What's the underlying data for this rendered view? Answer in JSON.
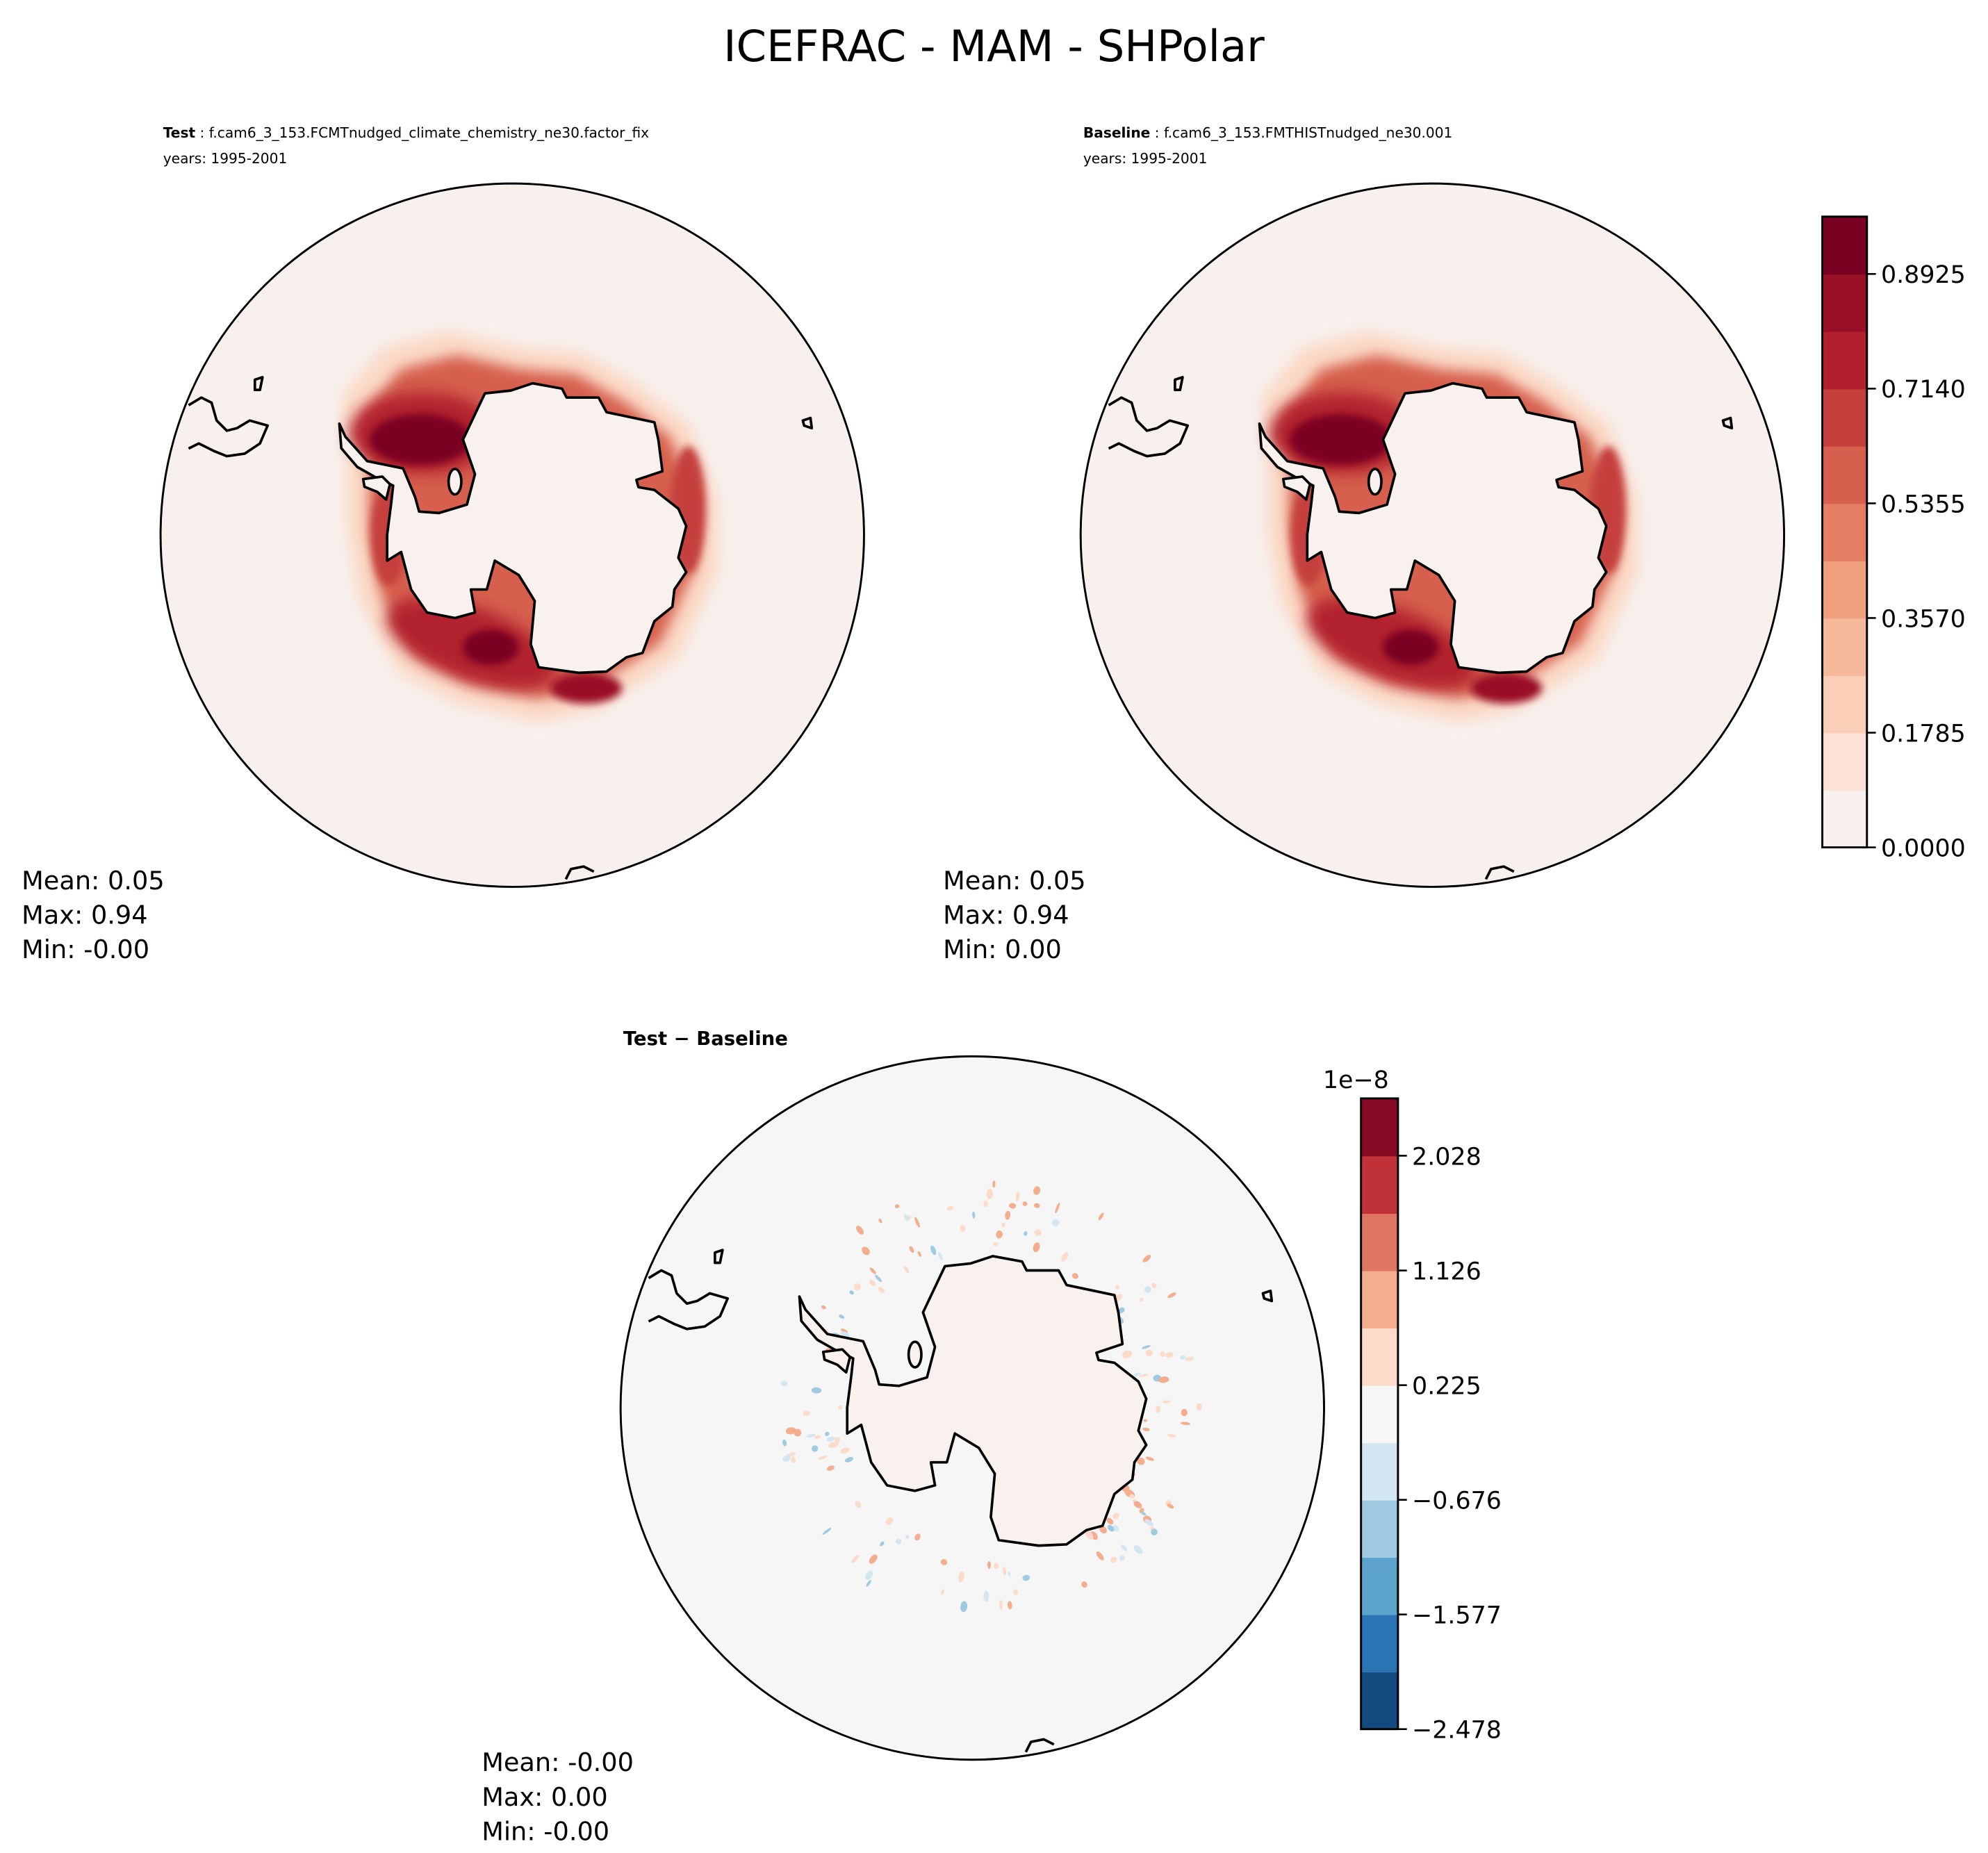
{
  "title": "ICEFRAC - MAM - SHPolar",
  "panels": [
    {
      "label": "Test",
      "case": " : f.cam6_3_153.FCMTnudged_climate_chemistry_ne30.factor_fix",
      "years": "years: 1995-2001",
      "stats": {
        "mean": "Mean:  0.05",
        "max": "Max:  0.94",
        "min": "Min: -0.00"
      }
    },
    {
      "label": "Baseline",
      "case": " : f.cam6_3_153.FMTHISTnudged_ne30.001",
      "years": "years: 1995-2001",
      "stats": {
        "mean": "Mean:  0.05",
        "max": "Max:  0.94",
        "min": "Min:  0.00"
      }
    },
    {
      "label": "Test − Baseline",
      "stats": {
        "mean": "Mean: -0.00",
        "max": "Max:  0.00",
        "min": "Min: -0.00"
      }
    }
  ],
  "chart_data": [
    {
      "type": "heatmap",
      "projection": "south-polar-stereographic",
      "variable": "ICEFRAC",
      "colorbar": {
        "levels": [
          0.0,
          0.08925,
          0.1785,
          0.26775,
          0.357,
          0.44625,
          0.5355,
          0.62475,
          0.714,
          0.80325,
          0.8925,
          0.98175
        ],
        "ticks": [
          "0.0000",
          "0.1785",
          "0.3570",
          "0.5355",
          "0.7140",
          "0.8925"
        ],
        "colors": [
          "#f7f0ed",
          "#fce1d6",
          "#fbcfb7",
          "#f7b99c",
          "#f1a07e",
          "#e47f65",
          "#d6604d",
          "#c5403c",
          "#b2202d",
          "#9a1127",
          "#7a0022"
        ]
      }
    },
    {
      "type": "heatmap",
      "projection": "south-polar-stereographic",
      "variable": "ICEFRAC difference",
      "colorbar": {
        "offset_label": "1e−8",
        "levels": [
          -2.478,
          -2.0275,
          -1.577,
          -1.1265,
          -0.676,
          -0.2255,
          0.225,
          0.6755,
          1.126,
          1.5765,
          2.028,
          2.4785
        ],
        "ticks": [
          "−2.478",
          "−1.577",
          "−0.676",
          "0.225",
          "1.126",
          "2.028"
        ],
        "colors": [
          "#134b80",
          "#2b74b3",
          "#5ba3cc",
          "#9fcae1",
          "#d3e6f1",
          "#f6f6f6",
          "#fddbcb",
          "#f4ae8e",
          "#de7560",
          "#c03237",
          "#870a24"
        ]
      }
    }
  ]
}
